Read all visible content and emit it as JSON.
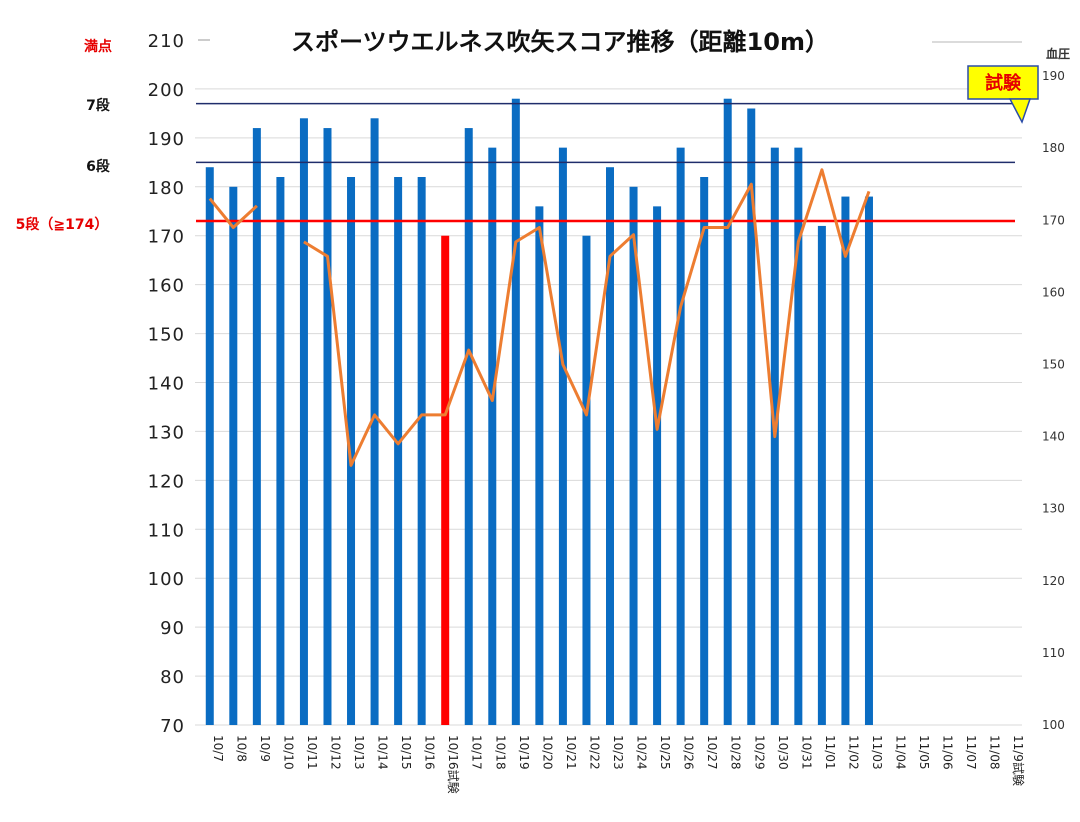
{
  "chart_data": {
    "type": "bar",
    "title": "スポーツウエルネス吹矢スコア推移（距離10m）",
    "y2label": "血圧",
    "ylim": [
      70,
      210
    ],
    "yticks": [
      70,
      80,
      90,
      100,
      110,
      120,
      130,
      140,
      150,
      160,
      170,
      180,
      190,
      200,
      210
    ],
    "y2lim": [
      100,
      195
    ],
    "y2ticks": [
      100,
      110,
      120,
      130,
      140,
      150,
      160,
      170,
      180,
      190
    ],
    "grid": true,
    "categories": [
      "10/7",
      "10/8",
      "10/9",
      "10/10",
      "10/11",
      "10/12",
      "10/13",
      "10/14",
      "10/15",
      "10/16",
      "10/16試験",
      "10/17",
      "10/18",
      "10/19",
      "10/20",
      "10/21",
      "10/22",
      "10/23",
      "10/24",
      "10/25",
      "10/26",
      "10/27",
      "10/28",
      "10/29",
      "10/30",
      "10/31",
      "11/01",
      "11/02",
      "11/03",
      "11/04",
      "11/05",
      "11/06",
      "11/07",
      "11/08",
      "11/9試験"
    ],
    "series": [
      {
        "kind": "bar",
        "axis": "left",
        "values": [
          184,
          180,
          192,
          182,
          194,
          192,
          182,
          194,
          182,
          182,
          170,
          192,
          188,
          198,
          176,
          188,
          170,
          184,
          180,
          176,
          188,
          182,
          198,
          196,
          188,
          188,
          172,
          178,
          178,
          null,
          null,
          null,
          null,
          null,
          null
        ],
        "color": "#0a6cc2",
        "highlight_index": 10,
        "highlight_color": "#ff0000"
      },
      {
        "kind": "line",
        "axis": "right",
        "values": [
          173,
          169,
          172,
          null,
          167,
          165,
          136,
          143,
          139,
          143,
          143,
          152,
          145,
          167,
          169,
          150,
          143,
          165,
          168,
          141,
          158,
          169,
          169,
          175,
          140,
          167,
          177,
          165,
          174,
          null,
          null,
          null,
          null,
          null,
          null
        ],
        "color": "#ed7d31"
      }
    ],
    "reference_lines": [
      {
        "label": "満点",
        "value": 210,
        "color": "#cfcfcf",
        "label_color": "#e60000"
      },
      {
        "label": "7段",
        "value": 197,
        "color": "#1f2d6b",
        "label_color": "#111111"
      },
      {
        "label": "6段",
        "value": 185,
        "color": "#1f2d6b",
        "label_color": "#111111"
      },
      {
        "label": "5段（≧174）",
        "value": 173,
        "color": "#ff0000",
        "label_color": "#e60000"
      }
    ],
    "callout": {
      "text": "試験",
      "fill": "#ffff00",
      "border": "#2b4da8",
      "text_color": "#e60000"
    }
  }
}
